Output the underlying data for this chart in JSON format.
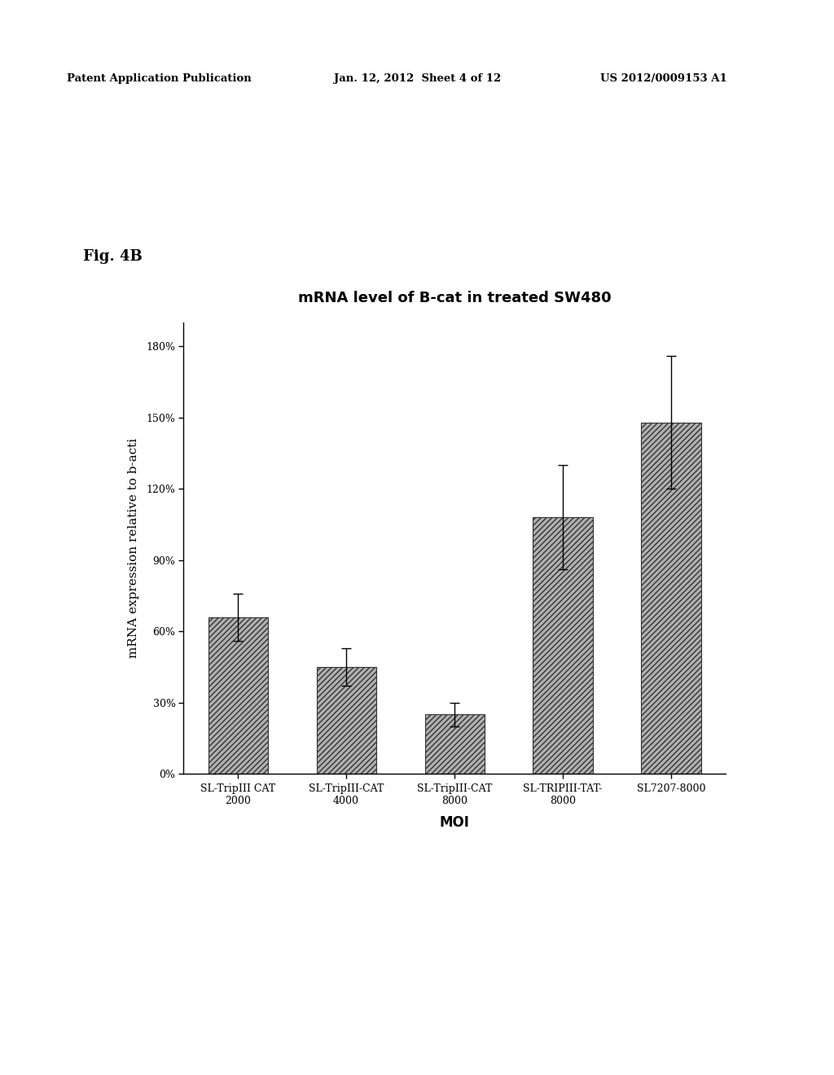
{
  "title": "mRNA level of B-cat in treated SW480",
  "xlabel": "MOI",
  "ylabel": "mRNA expression relative to b-acti",
  "categories": [
    "SL-TripIII CAT\n2000",
    "SL-TripIII-CAT\n4000",
    "SL-TripIII-CAT\n8000",
    "SL-TRIPIII-TAT-\n8000",
    "SL7207-8000"
  ],
  "values": [
    0.66,
    0.45,
    0.25,
    1.08,
    1.48
  ],
  "errors": [
    0.1,
    0.08,
    0.05,
    0.22,
    0.28
  ],
  "ylim": [
    0,
    1.9
  ],
  "yticks": [
    0.0,
    0.3,
    0.6,
    0.9,
    1.2,
    1.5,
    1.8
  ],
  "ytick_labels": [
    "0%",
    "30%",
    "60%",
    "90%",
    "120%",
    "150%",
    "180%"
  ],
  "bar_color": "#b0b0b0",
  "bar_edgecolor": "#333333",
  "bar_width": 0.55,
  "fig_label": "Fig. 4B",
  "background_color": "#ffffff",
  "title_fontsize": 13,
  "axis_label_fontsize": 11,
  "tick_fontsize": 9,
  "fig_label_fontsize": 13
}
